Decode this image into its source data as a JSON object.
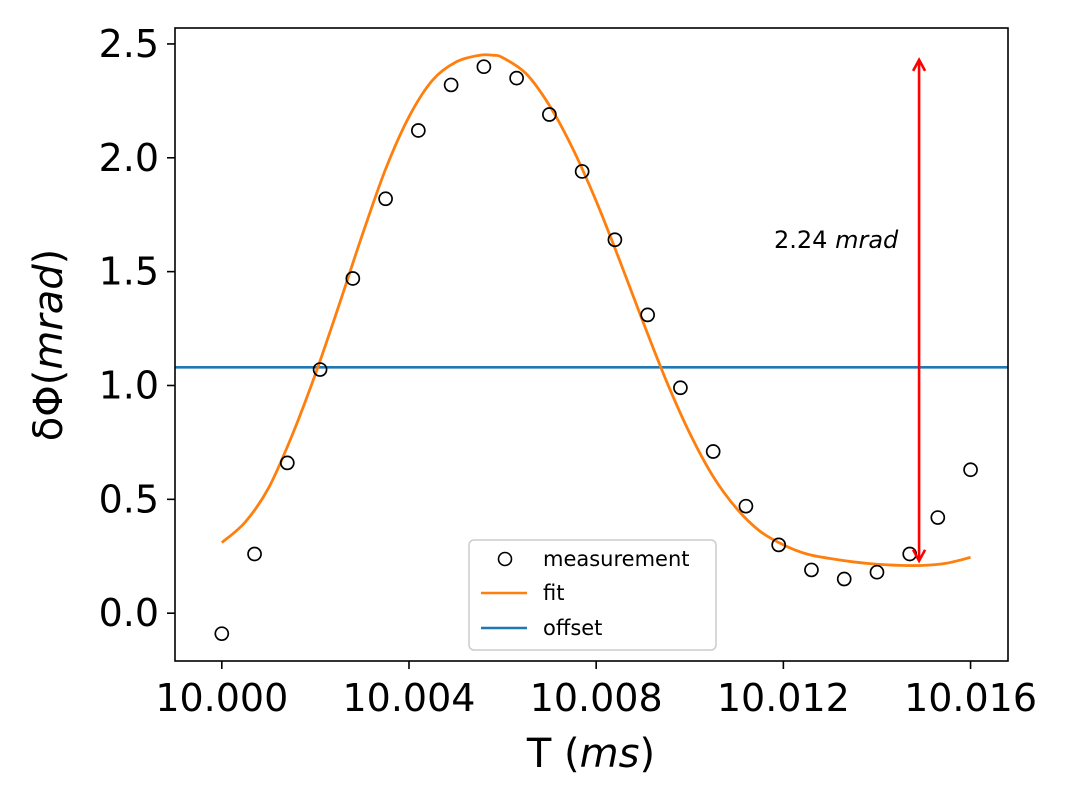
{
  "chart_data": {
    "type": "scatter",
    "title": "",
    "xlabel": "T (ms)",
    "ylabel": "δΦ(mrad)",
    "xlim": [
      9.999,
      10.0168
    ],
    "ylim": [
      -0.21,
      2.57
    ],
    "xticks": [
      10.0,
      10.004,
      10.008,
      10.012,
      10.016
    ],
    "xtick_labels": [
      "10.000",
      "10.004",
      "10.008",
      "10.012",
      "10.016"
    ],
    "yticks": [
      0.0,
      0.5,
      1.0,
      1.5,
      2.0,
      2.5
    ],
    "ytick_labels": [
      "0.0",
      "0.5",
      "1.0",
      "1.5",
      "2.0",
      "2.5"
    ],
    "grid": false,
    "legend_position": "bottom-center",
    "series": [
      {
        "name": "measurement",
        "kind": "scatter",
        "marker": "open-circle",
        "color": "#000000",
        "x": [
          10.0,
          10.0007,
          10.0014,
          10.0021,
          10.0028,
          10.0035,
          10.0042,
          10.0049,
          10.0056,
          10.0063,
          10.007,
          10.0077,
          10.0084,
          10.0091,
          10.0098,
          10.0105,
          10.0112,
          10.0119,
          10.0126,
          10.0133,
          10.014,
          10.0147,
          10.0153,
          10.016
        ],
        "y": [
          -0.09,
          0.26,
          0.66,
          1.07,
          1.47,
          1.82,
          2.12,
          2.32,
          2.4,
          2.35,
          2.19,
          1.94,
          1.64,
          1.31,
          0.99,
          0.71,
          0.47,
          0.3,
          0.19,
          0.15,
          0.18,
          0.26,
          0.42,
          0.63
        ]
      },
      {
        "name": "fit",
        "kind": "line",
        "color": "#ff7f0e",
        "x": [
          10.0,
          10.0005,
          10.001,
          10.0015,
          10.002,
          10.0025,
          10.003,
          10.0035,
          10.004,
          10.0045,
          10.005,
          10.0055,
          10.0058,
          10.006,
          10.0065,
          10.007,
          10.0075,
          10.008,
          10.0085,
          10.009,
          10.0095,
          10.01,
          10.0105,
          10.011,
          10.0115,
          10.012,
          10.0125,
          10.013,
          10.0135,
          10.014,
          10.0145,
          10.015,
          10.0155,
          10.016
        ],
        "y": [
          0.31,
          0.4,
          0.55,
          0.78,
          1.05,
          1.35,
          1.66,
          1.95,
          2.18,
          2.34,
          2.42,
          2.45,
          2.45,
          2.44,
          2.37,
          2.23,
          2.04,
          1.81,
          1.55,
          1.28,
          1.02,
          0.79,
          0.6,
          0.46,
          0.36,
          0.3,
          0.26,
          0.24,
          0.225,
          0.215,
          0.21,
          0.21,
          0.22,
          0.245
        ]
      },
      {
        "name": "offset",
        "kind": "hline",
        "color": "#1f77b4",
        "y": 1.08
      }
    ],
    "annotations": [
      {
        "kind": "double-arrow",
        "color": "#ff0000",
        "x": 10.0149,
        "y_from": 0.23,
        "y_to": 2.43,
        "text_prefix": "2.24 ",
        "text_unit": "mrad",
        "text_x": 10.0118,
        "text_y": 1.64
      }
    ]
  }
}
